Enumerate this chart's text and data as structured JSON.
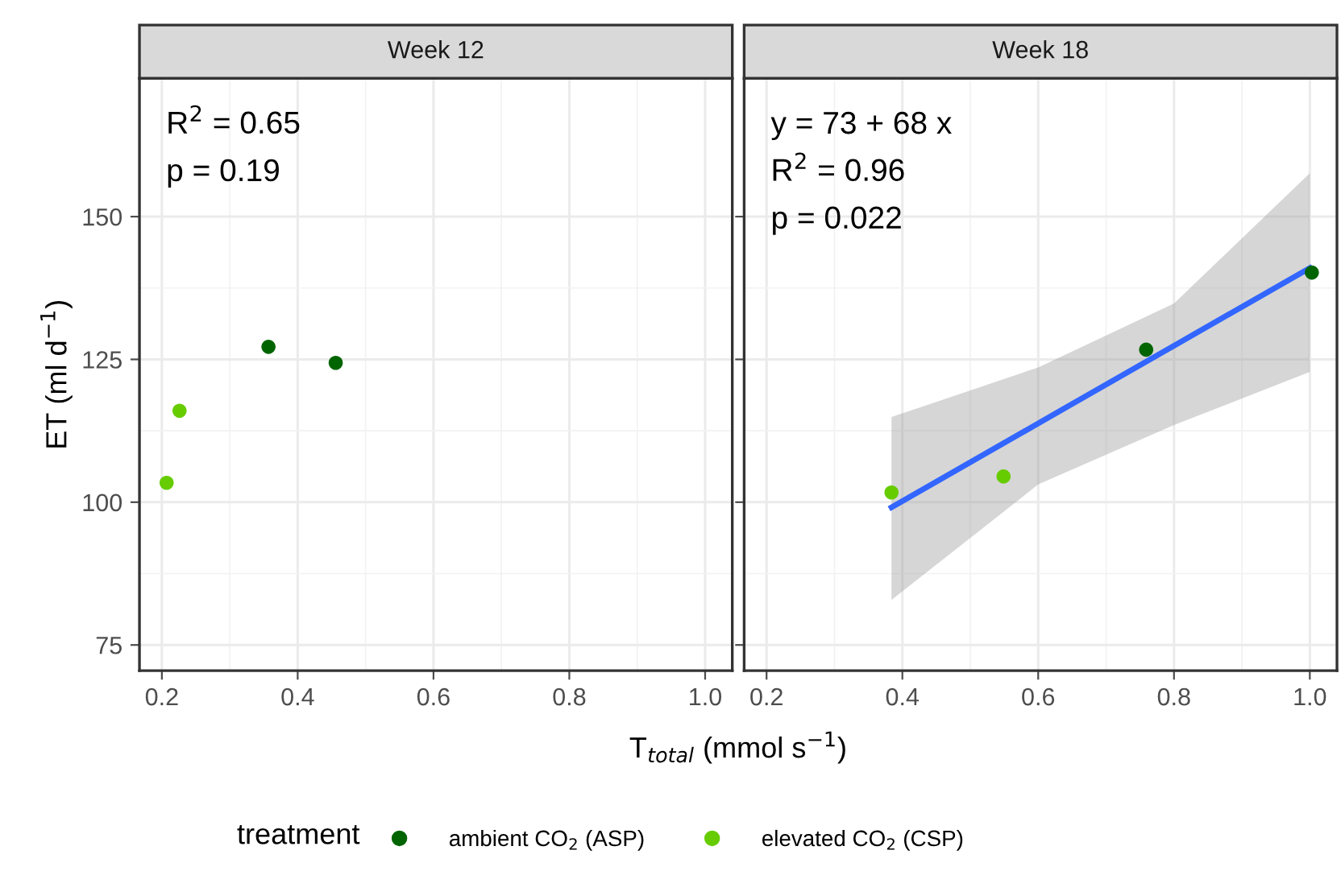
{
  "chart_data": [
    {
      "type": "scatter",
      "title": "Week 12",
      "xlabel": "T$_{total}$ (mmol s$^{−1}$)",
      "ylabel": "ET (ml d$^{−1}$)",
      "legend_title": "treatment",
      "legend": "bottom",
      "marker": "circle",
      "grid": true,
      "xlim": [
        0.167,
        1.04
      ],
      "ylim": [
        70.5,
        174.2
      ],
      "xticks": [
        0.2,
        0.4,
        0.6,
        0.8,
        {
          "value": 1.0,
          "label": "1.0"
        }
      ],
      "yticks": [
        75,
        100,
        125,
        150
      ],
      "annotations": [
        "R$^{2}$ = 0.65",
        "p = 0.19"
      ],
      "series": [
        {
          "name": "ambient CO$_{2}$ (ASP)",
          "color": "#006400",
          "x": [
            0.357,
            0.456
          ],
          "values": [
            127.2,
            124.4
          ]
        },
        {
          "name": "elevated CO$_{2}$ (CSP)",
          "color": "#66cc00",
          "x": [
            0.207,
            0.226
          ],
          "values": [
            103.4,
            116.0
          ]
        }
      ]
    },
    {
      "type": "scatter",
      "title": "Week 18",
      "marker": "circle",
      "grid": true,
      "tick_labels": "x",
      "xlim": [
        0.167,
        1.04
      ],
      "ylim": [
        70.5,
        174.2
      ],
      "xticks": [
        0.2,
        0.4,
        0.6,
        0.8,
        {
          "value": 1.0,
          "label": "1.0"
        }
      ],
      "yticks": [
        75,
        100,
        125,
        150
      ],
      "annotations": [
        "y = 73 + 68 x",
        "R$^{2}$ = 0.96",
        "p = 0.022"
      ],
      "series": [
        {
          "type": "line",
          "marker": "none",
          "color": "#3366ff",
          "x": [
            0.384,
            0.6,
            0.8,
            1.0
          ],
          "values": [
            99.1,
            113.8,
            127.4,
            141.0
          ],
          "lower": [
            82.9,
            103.1,
            113.5,
            122.8
          ],
          "upper": [
            114.9,
            123.6,
            134.8,
            157.6
          ]
        },
        {
          "name": "ambient CO$_{2}$ (ASP)",
          "color": "#006400",
          "x": [
            0.759,
            1.003
          ],
          "values": [
            126.7,
            140.2
          ]
        },
        {
          "name": "elevated CO$_{2}$ (CSP)",
          "color": "#66cc00",
          "x": [
            0.384,
            0.549
          ],
          "values": [
            101.7,
            104.5
          ]
        }
      ]
    }
  ]
}
